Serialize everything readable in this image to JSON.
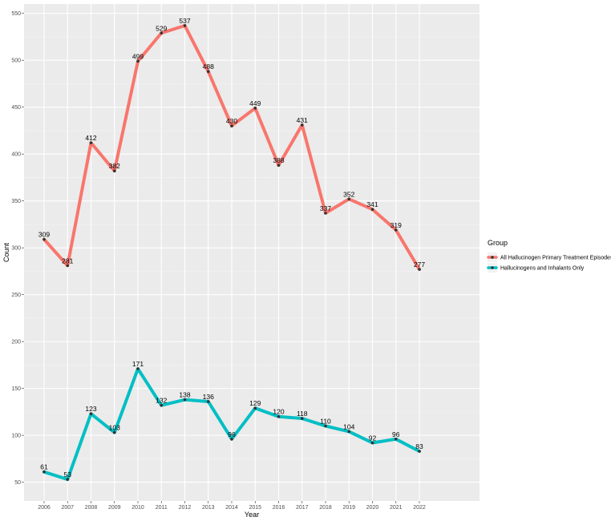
{
  "chart_data": {
    "type": "line",
    "xlabel": "Year",
    "ylabel": "Count",
    "x": [
      2006,
      2007,
      2008,
      2009,
      2010,
      2011,
      2012,
      2013,
      2014,
      2015,
      2016,
      2017,
      2018,
      2019,
      2020,
      2021,
      2022
    ],
    "ylim": [
      30,
      560
    ],
    "yticks": [
      50,
      100,
      150,
      200,
      250,
      300,
      350,
      400,
      450,
      500,
      550
    ],
    "grid": true,
    "legend_position": "right",
    "legend_title": "Group",
    "series": [
      {
        "name": "All Hallucinogen Primary Treatment Episodes",
        "color": "#f8766d",
        "values": [
          309,
          281,
          412,
          382,
          499,
          529,
          537,
          488,
          430,
          449,
          388,
          431,
          337,
          352,
          341,
          319,
          277
        ]
      },
      {
        "name": "Hallucinogens and Inhalants Only",
        "color": "#00bfc4",
        "values": [
          61,
          53,
          123,
          103,
          171,
          132,
          138,
          136,
          96,
          129,
          120,
          118,
          110,
          104,
          92,
          96,
          83
        ]
      }
    ]
  }
}
